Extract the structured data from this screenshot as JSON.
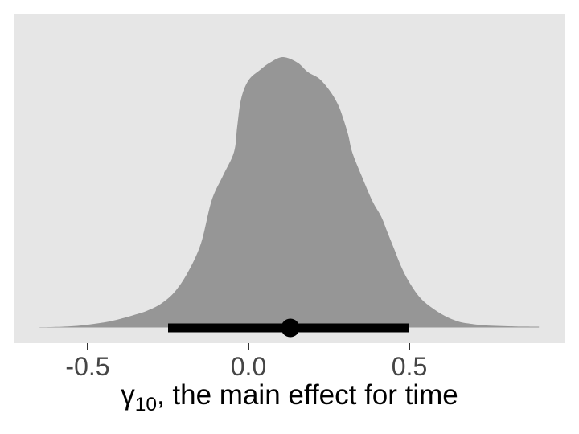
{
  "figure": {
    "background": "#FFFFFF",
    "panel_background": "#E6E6E6"
  },
  "axis": {
    "title_gamma": "γ",
    "title_subscript": "10",
    "title_rest": ", the main effect for time"
  },
  "chart_data": {
    "type": "area",
    "variant": "posterior-density-with-point-interval",
    "title": "",
    "xlabel": "γ10, the main effect for time",
    "ylabel": "",
    "xlim": [
      -0.73,
      0.98
    ],
    "grid": "off",
    "legend": "none",
    "x_ticks": [
      -0.5,
      0.0,
      0.5
    ],
    "x_tick_labels": [
      "-0.5",
      "0.0",
      "0.5"
    ],
    "density": {
      "x": [
        -0.65,
        -0.598,
        -0.523,
        -0.448,
        -0.398,
        -0.348,
        -0.315,
        -0.273,
        -0.23,
        -0.19,
        -0.148,
        -0.115,
        -0.08,
        -0.045,
        -0.035,
        -0.023,
        0.0,
        0.035,
        0.07,
        0.108,
        0.153,
        0.185,
        0.22,
        0.253,
        0.278,
        0.295,
        0.31,
        0.323,
        0.353,
        0.385,
        0.413,
        0.433,
        0.453,
        0.473,
        0.498,
        0.533,
        0.57,
        0.61,
        0.653,
        0.695,
        0.745,
        0.828,
        0.903
      ],
      "height_relative": [
        0.001,
        0.002,
        0.007,
        0.019,
        0.032,
        0.049,
        0.062,
        0.087,
        0.131,
        0.201,
        0.31,
        0.468,
        0.56,
        0.649,
        0.744,
        0.845,
        0.914,
        0.952,
        0.982,
        1.0,
        0.979,
        0.944,
        0.92,
        0.875,
        0.825,
        0.771,
        0.712,
        0.646,
        0.557,
        0.468,
        0.409,
        0.349,
        0.29,
        0.23,
        0.171,
        0.111,
        0.073,
        0.043,
        0.022,
        0.013,
        0.007,
        0.004,
        0.003
      ],
      "mode": 0.11
    },
    "point_interval": {
      "point": 0.13,
      "interval": [
        -0.25,
        0.5
      ]
    },
    "colors": {
      "density_fill": "#969696",
      "interval": "#000000",
      "point": "#000000",
      "tick_mark": "#333333",
      "tick_text": "#454545",
      "axis_title_text": "#000000",
      "panel_background": "#E6E6E6"
    }
  }
}
